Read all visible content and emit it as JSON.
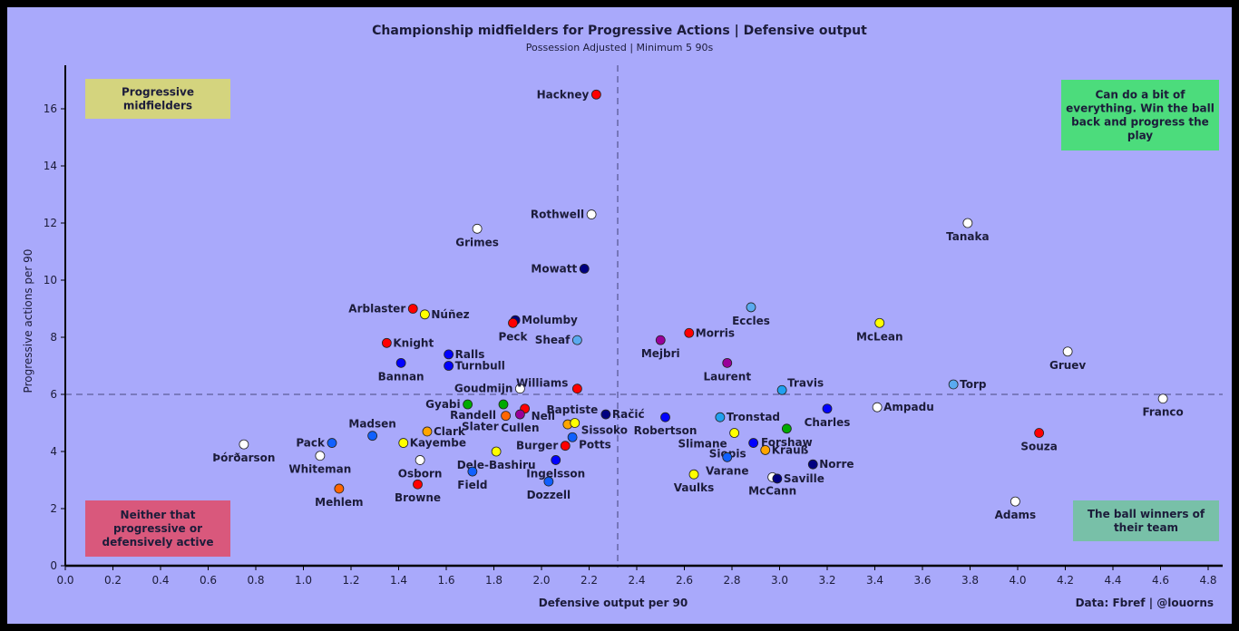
{
  "chart_data": {
    "type": "scatter",
    "title": "Championship midfielders for Progressive Actions | Defensive output",
    "subtitle": "Possession Adjusted | Minimum 5 90s",
    "xlabel": "Defensive output per 90",
    "ylabel": "Progressive actions per 90",
    "xlim": [
      0,
      4.8
    ],
    "ylim": [
      0,
      17.2
    ],
    "xticks": [
      "0.0",
      "0.2",
      "0.4",
      "0.6",
      "0.8",
      "1.0",
      "1.2",
      "1.4",
      "1.6",
      "1.8",
      "2.0",
      "2.2",
      "2.4",
      "2.6",
      "2.8",
      "3.0",
      "3.2",
      "3.4",
      "3.6",
      "3.8",
      "4.0",
      "4.2",
      "4.4",
      "4.6",
      "4.8"
    ],
    "yticks": [
      "0",
      "2",
      "4",
      "6",
      "8",
      "10",
      "12",
      "14",
      "16"
    ],
    "grid": false,
    "reference_lines": {
      "x_mean": 2.32,
      "y_mean": 6.0
    },
    "credit": "Data: Fbref | @louorns",
    "quadrant_labels": [
      {
        "position": "top-left",
        "text": "Progressive midfielders",
        "color": "#d4d47e"
      },
      {
        "position": "top-right",
        "text": "Can do a bit of everything. Win the ball back and progress the play",
        "color": "#4cdc7c"
      },
      {
        "position": "bottom-left",
        "text": "Neither that progressive or defensively active",
        "color": "#d9587c"
      },
      {
        "position": "bottom-right",
        "text": "The ball winners of their team",
        "color": "#78c0a8"
      }
    ],
    "points": [
      {
        "name": "Hackney",
        "x": 2.23,
        "y": 16.5,
        "color": "#ff0000",
        "label": "left"
      },
      {
        "name": "Rothwell",
        "x": 2.21,
        "y": 12.3,
        "color": "#ffffff",
        "label": "left"
      },
      {
        "name": "Grimes",
        "x": 1.73,
        "y": 11.8,
        "color": "#ffffff",
        "label": "below"
      },
      {
        "name": "Mowatt",
        "x": 2.18,
        "y": 10.4,
        "color": "#000080",
        "label": "left"
      },
      {
        "name": "Arblaster",
        "x": 1.46,
        "y": 9.0,
        "color": "#ff0000",
        "label": "left"
      },
      {
        "name": "Núñez",
        "x": 1.51,
        "y": 8.8,
        "color": "#ffff00",
        "label": "right"
      },
      {
        "name": "Molumby",
        "x": 1.89,
        "y": 8.6,
        "color": "#000080",
        "label": "right"
      },
      {
        "name": "Peck",
        "x": 1.88,
        "y": 8.5,
        "color": "#ff0000",
        "label": "below"
      },
      {
        "name": "Sheaf",
        "x": 2.15,
        "y": 7.9,
        "color": "#5aaaf0",
        "label": "left"
      },
      {
        "name": "Knight",
        "x": 1.35,
        "y": 7.8,
        "color": "#ff0000",
        "label": "right"
      },
      {
        "name": "Ralls",
        "x": 1.61,
        "y": 7.4,
        "color": "#0000ff",
        "label": "right"
      },
      {
        "name": "Turnbull",
        "x": 1.61,
        "y": 7.0,
        "color": "#0000ff",
        "label": "right"
      },
      {
        "name": "Bannan",
        "x": 1.41,
        "y": 7.1,
        "color": "#0000ff",
        "label": "below"
      },
      {
        "name": "Goudmijn",
        "x": 1.91,
        "y": 6.2,
        "color": "#ffffff",
        "label": "left"
      },
      {
        "name": "Williams",
        "x": 2.15,
        "y": 6.2,
        "color": "#ff0000",
        "label": "upper-left"
      },
      {
        "name": "Gyabi",
        "x": 1.69,
        "y": 5.65,
        "color": "#00aa00",
        "label": "left"
      },
      {
        "name": "Randell",
        "x": 1.84,
        "y": 5.65,
        "color": "#00aa00",
        "label": "lower-left"
      },
      {
        "name": "Neil",
        "x": 1.93,
        "y": 5.5,
        "color": "#ff0000",
        "label": "lower-right"
      },
      {
        "name": "Cullen",
        "x": 1.91,
        "y": 5.3,
        "color": "#990099",
        "label": "below"
      },
      {
        "name": "Slater",
        "x": 1.85,
        "y": 5.25,
        "color": "#ff6600",
        "label": "lower-left"
      },
      {
        "name": "Baptiste",
        "x": 2.11,
        "y": 4.95,
        "color": "#ffa500",
        "label": "upper"
      },
      {
        "name": "Sissoko",
        "x": 2.14,
        "y": 5.0,
        "color": "#ffff00",
        "label": "lower-right"
      },
      {
        "name": "Račić",
        "x": 2.27,
        "y": 5.3,
        "color": "#000080",
        "label": "right"
      },
      {
        "name": "Potts",
        "x": 2.13,
        "y": 4.5,
        "color": "#1060ff",
        "label": "lower-right"
      },
      {
        "name": "Burger",
        "x": 2.1,
        "y": 4.2,
        "color": "#ff0000",
        "label": "left"
      },
      {
        "name": "Ingelsson",
        "x": 2.06,
        "y": 3.7,
        "color": "#0000ff",
        "label": "below"
      },
      {
        "name": "Dozzell",
        "x": 2.03,
        "y": 2.95,
        "color": "#1060ff",
        "label": "below"
      },
      {
        "name": "Dele-Bashiru",
        "x": 1.81,
        "y": 4.0,
        "color": "#ffff00",
        "label": "below"
      },
      {
        "name": "Field",
        "x": 1.71,
        "y": 3.3,
        "color": "#1060ff",
        "label": "below"
      },
      {
        "name": "Clark",
        "x": 1.52,
        "y": 4.7,
        "color": "#ffa500",
        "label": "right"
      },
      {
        "name": "Kayembe",
        "x": 1.42,
        "y": 4.3,
        "color": "#ffff00",
        "label": "right"
      },
      {
        "name": "Osborn",
        "x": 1.49,
        "y": 3.7,
        "color": "#ffffff",
        "label": "below"
      },
      {
        "name": "Browne",
        "x": 1.48,
        "y": 2.85,
        "color": "#ff0000",
        "label": "below"
      },
      {
        "name": "Madsen",
        "x": 1.29,
        "y": 4.55,
        "color": "#1060ff",
        "label": "above"
      },
      {
        "name": "Pack",
        "x": 1.12,
        "y": 4.3,
        "color": "#1060ff",
        "label": "left"
      },
      {
        "name": "Whiteman",
        "x": 1.07,
        "y": 3.85,
        "color": "#ffffff",
        "label": "below"
      },
      {
        "name": "Mehlem",
        "x": 1.15,
        "y": 2.7,
        "color": "#ff6600",
        "label": "below"
      },
      {
        "name": "Þórðarson",
        "x": 0.75,
        "y": 4.25,
        "color": "#ffffff",
        "label": "below"
      },
      {
        "name": "Mejbri",
        "x": 2.5,
        "y": 7.9,
        "color": "#990099",
        "label": "below"
      },
      {
        "name": "Morris",
        "x": 2.62,
        "y": 8.15,
        "color": "#ff0000",
        "label": "right"
      },
      {
        "name": "Eccles",
        "x": 2.88,
        "y": 9.05,
        "color": "#5aaaf0",
        "label": "below"
      },
      {
        "name": "Laurent",
        "x": 2.78,
        "y": 7.1,
        "color": "#990099",
        "label": "below"
      },
      {
        "name": "Travis",
        "x": 3.01,
        "y": 6.15,
        "color": "#20a0f0",
        "label": "upper-right"
      },
      {
        "name": "McLean",
        "x": 3.42,
        "y": 8.5,
        "color": "#ffff00",
        "label": "below"
      },
      {
        "name": "Tanaka",
        "x": 3.79,
        "y": 12.0,
        "color": "#ffffff",
        "label": "below"
      },
      {
        "name": "Gruev",
        "x": 4.21,
        "y": 7.5,
        "color": "#ffffff",
        "label": "below"
      },
      {
        "name": "Torp",
        "x": 3.73,
        "y": 6.35,
        "color": "#5aaaf0",
        "label": "right"
      },
      {
        "name": "Franco",
        "x": 4.61,
        "y": 5.85,
        "color": "#ffffff",
        "label": "below"
      },
      {
        "name": "Ampadu",
        "x": 3.41,
        "y": 5.55,
        "color": "#ffffff",
        "label": "right"
      },
      {
        "name": "Charles",
        "x": 3.2,
        "y": 5.5,
        "color": "#0000ff",
        "label": "below"
      },
      {
        "name": "Robertson",
        "x": 2.52,
        "y": 5.2,
        "color": "#0000ff",
        "label": "below"
      },
      {
        "name": "Tronstad",
        "x": 2.75,
        "y": 5.2,
        "color": "#20a0f0",
        "label": "right"
      },
      {
        "name": "Forshaw",
        "x": 3.03,
        "y": 4.8,
        "color": "#00aa00",
        "label": "below"
      },
      {
        "name": "Slimane",
        "x": 2.81,
        "y": 4.65,
        "color": "#ffff00",
        "label": "lower-left"
      },
      {
        "name": "Siopis",
        "x": 2.89,
        "y": 4.3,
        "color": "#0000ff",
        "label": "lower-left"
      },
      {
        "name": "Krauß",
        "x": 2.94,
        "y": 4.05,
        "color": "#ffa500",
        "label": "right"
      },
      {
        "name": "Varane",
        "x": 2.78,
        "y": 3.8,
        "color": "#1060ff",
        "label": "below"
      },
      {
        "name": "Vaulks",
        "x": 2.64,
        "y": 3.2,
        "color": "#ffff00",
        "label": "below"
      },
      {
        "name": "Norre",
        "x": 3.14,
        "y": 3.55,
        "color": "#000080",
        "label": "right"
      },
      {
        "name": "McCann",
        "x": 2.97,
        "y": 3.1,
        "color": "#ffffff",
        "label": "below"
      },
      {
        "name": "Saville",
        "x": 2.99,
        "y": 3.05,
        "color": "#000080",
        "label": "right"
      },
      {
        "name": "Souza",
        "x": 4.09,
        "y": 4.65,
        "color": "#ff0000",
        "label": "below"
      },
      {
        "name": "Adams",
        "x": 3.99,
        "y": 2.25,
        "color": "#ffffff",
        "label": "below"
      }
    ]
  }
}
